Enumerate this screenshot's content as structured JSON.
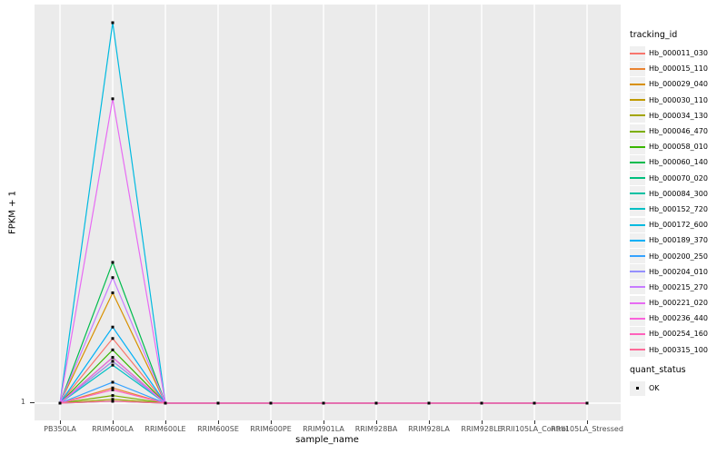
{
  "figure": {
    "background": "#FFFFFF"
  },
  "axes": {
    "y_title": "FPKM + 1",
    "x_title": "sample_name",
    "y_tick_label": "1"
  },
  "legend_tracking": {
    "title": "tracking_id"
  },
  "legend_quant": {
    "title": "quant_status",
    "items": [
      {
        "label": "OK",
        "marker": "small-black-square"
      }
    ]
  },
  "colors": {
    "panel_bg": "#EBEBEB",
    "grid": "#FFFFFF",
    "point": "#000000",
    "tick_text": "#4D4D4D",
    "axis_title_text": "#000000",
    "legend_key_bg": "#F0F0F0"
  },
  "chart_data": {
    "type": "line",
    "title": "",
    "xlabel": "sample_name",
    "ylabel": "FPKM + 1",
    "grid": "on",
    "legend_title": "tracking_id",
    "legend_position": "right",
    "categories": [
      "PB350LA",
      "RRIM600LA",
      "RRIM600LE",
      "RRIM600SE",
      "RRIM600PE",
      "RRIM901LA",
      "RRIM928BA",
      "RRIM928LA",
      "RRIM928LE",
      "RRII105LA_Control",
      "RRII105LA_Stressed"
    ],
    "y_tick_labels": [
      "1"
    ],
    "baseline_value": 1,
    "spike_category": "RRIM600LA",
    "values_note": "Each series equals 1 (baseline) at every sample except a single spike at RRIM600LA; only the y tick '1' is labeled, so spike heights are recorded as peak_rel = fraction of the tallest spike's height.",
    "series": [
      {
        "name": "Hb_000011_030",
        "color": "#F8766D",
        "peak_rel": 0.17
      },
      {
        "name": "Hb_000015_110",
        "color": "#EA8331",
        "peak_rel": 0.04
      },
      {
        "name": "Hb_000029_040",
        "color": "#D89000",
        "peak_rel": 0.29
      },
      {
        "name": "Hb_000030_110",
        "color": "#C09B00",
        "peak_rel": 0.11
      },
      {
        "name": "Hb_000034_130",
        "color": "#A3A500",
        "peak_rel": 0.01
      },
      {
        "name": "Hb_000046_470",
        "color": "#7CAE00",
        "peak_rel": 0.02
      },
      {
        "name": "Hb_000058_010",
        "color": "#39B600",
        "peak_rel": 0.14
      },
      {
        "name": "Hb_000060_140",
        "color": "#00BB4E",
        "peak_rel": 0.37
      },
      {
        "name": "Hb_000070_020",
        "color": "#00BF7D",
        "peak_rel": 0.12
      },
      {
        "name": "Hb_000084_300",
        "color": "#00C1A3",
        "peak_rel": 0.005
      },
      {
        "name": "Hb_000152_720",
        "color": "#00BFC4",
        "peak_rel": 0.1
      },
      {
        "name": "Hb_000172_600",
        "color": "#00BAE0",
        "peak_rel": 1.0
      },
      {
        "name": "Hb_000189_370",
        "color": "#00B0F6",
        "peak_rel": 0.2
      },
      {
        "name": "Hb_000200_250",
        "color": "#35A2FF",
        "peak_rel": 0.055
      },
      {
        "name": "Hb_000204_010",
        "color": "#9590FF",
        "peak_rel": 0.11
      },
      {
        "name": "Hb_000215_270",
        "color": "#C77CFF",
        "peak_rel": 0.33
      },
      {
        "name": "Hb_000221_020",
        "color": "#E76BF3",
        "peak_rel": 0.8
      },
      {
        "name": "Hb_000236_440",
        "color": "#FA62DB",
        "peak_rel": 0.12
      },
      {
        "name": "Hb_000254_160",
        "color": "#FF62BC",
        "peak_rel": 0.035
      },
      {
        "name": "Hb_000315_100",
        "color": "#FF6A98",
        "peak_rel": 0.005
      }
    ],
    "point_marker": {
      "shape": "square",
      "color": "#000000",
      "meaning": "quant_status OK"
    }
  }
}
